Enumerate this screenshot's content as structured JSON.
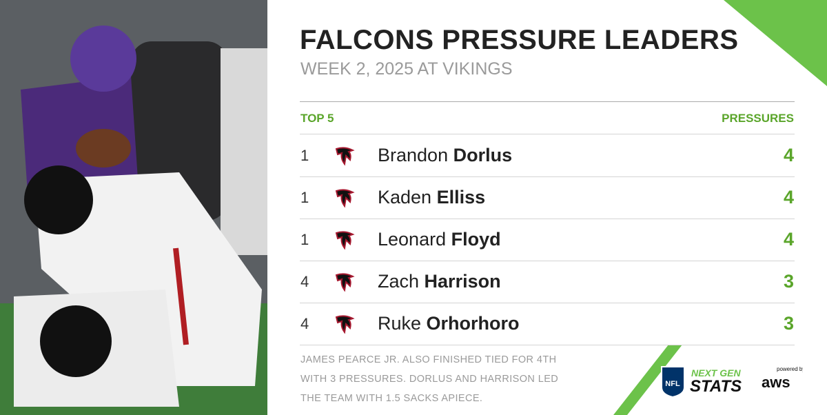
{
  "header": {
    "title": "FALCONS PRESSURE LEADERS",
    "subtitle": "WEEK 2, 2025 AT VIKINGS"
  },
  "table": {
    "columns": [
      "TOP 5",
      "PRESSURES"
    ],
    "rows": [
      {
        "rank": 1,
        "first": "Brandon",
        "last": "Dorlus",
        "pressures": 4
      },
      {
        "rank": 1,
        "first": "Kaden",
        "last": "Elliss",
        "pressures": 4
      },
      {
        "rank": 1,
        "first": "Leonard",
        "last": "Floyd",
        "pressures": 4
      },
      {
        "rank": 4,
        "first": "Zach",
        "last": "Harrison",
        "pressures": 3
      },
      {
        "rank": 4,
        "first": "Ruke",
        "last": "Orhorhoro",
        "pressures": 3
      }
    ]
  },
  "footnote": [
    "JAMES PEARCE JR. ALSO FINISHED TIED FOR 4TH",
    "WITH 3 PRESSURES. DORLUS AND HARRISON LED",
    "THE TEAM WITH 1.5 SACKS APIECE."
  ],
  "branding": {
    "nfl": "NFL",
    "next_gen": "NEXT GEN",
    "stats": "STATS",
    "powered_by": "powered by",
    "aws": "aws"
  }
}
